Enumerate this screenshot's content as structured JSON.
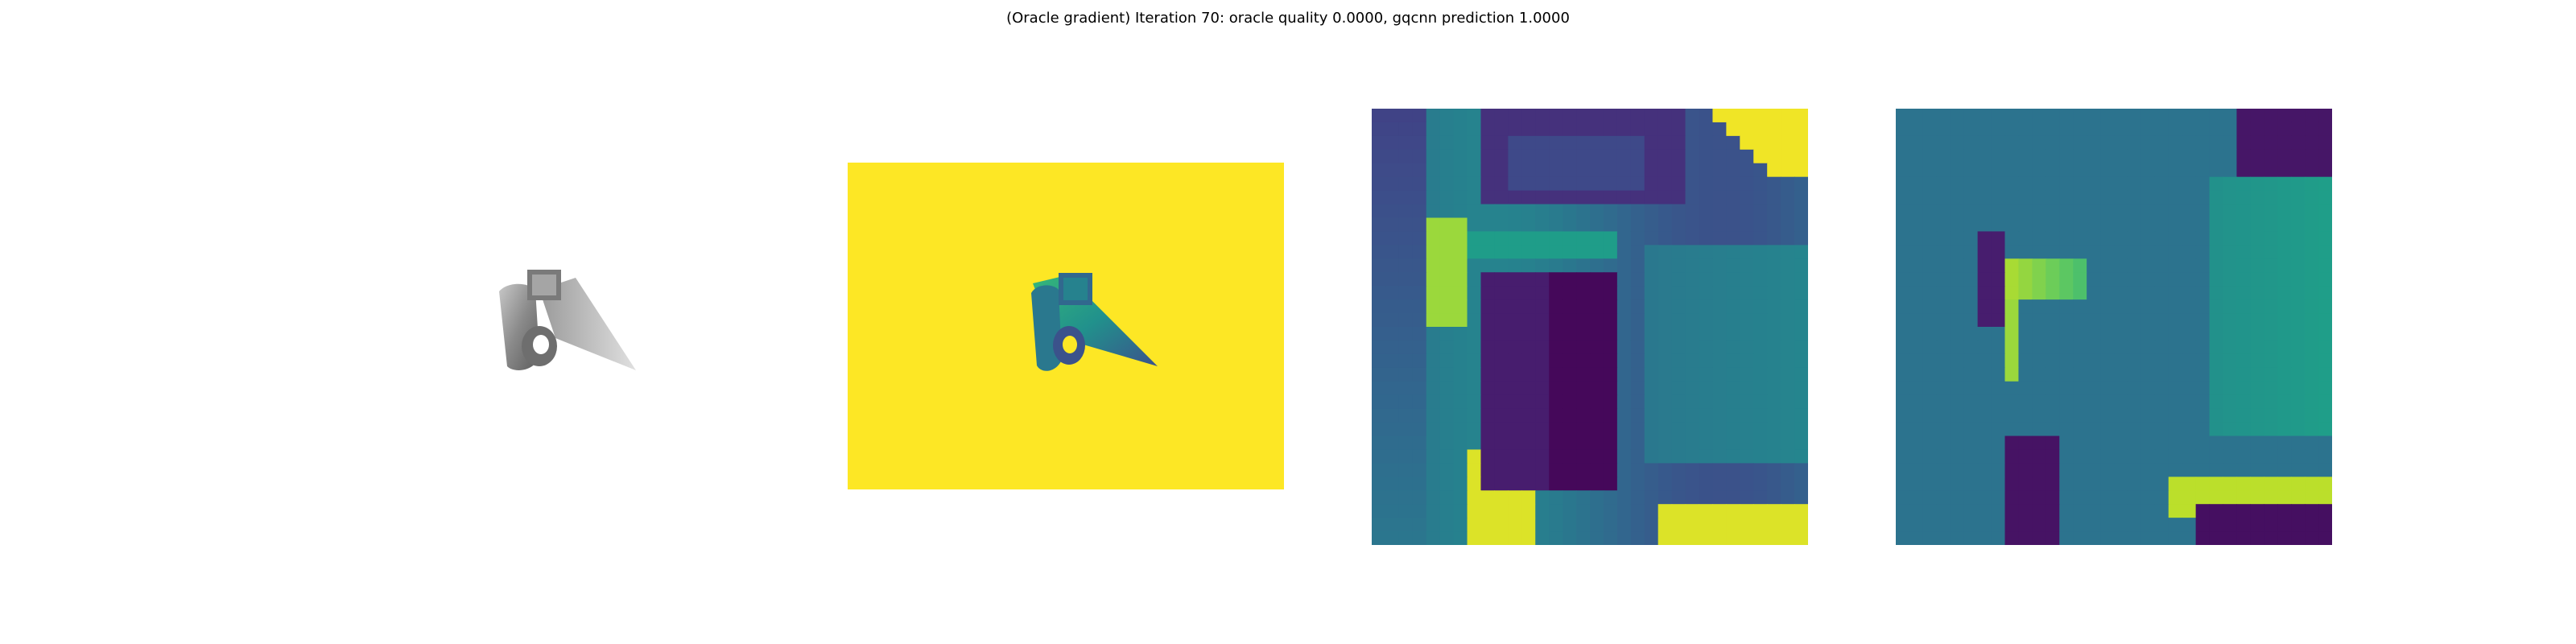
{
  "figure": {
    "title": "(Oracle gradient) Iteration 70: oracle quality 0.0000, gqcnn prediction 1.0000"
  },
  "panels": [
    {
      "kind": "render",
      "description": "gray-object"
    },
    {
      "kind": "depth",
      "background": "#fde725",
      "object_colormap": "viridis"
    },
    {
      "kind": "heatmap",
      "colormap": "viridis"
    },
    {
      "kind": "heatmap",
      "colormap": "viridis"
    }
  ],
  "colors": {
    "viridis_dark": "#440154",
    "viridis_blue": "#3b528b",
    "viridis_teal": "#21918c",
    "viridis_green": "#5ec962",
    "viridis_yellow": "#fde725"
  }
}
